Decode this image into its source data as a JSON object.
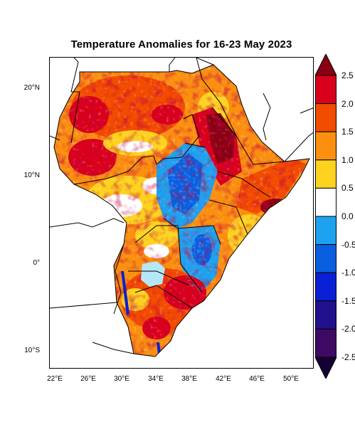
{
  "title": "Temperature Anomalies for 16-23 May 2023",
  "lat_labels": [
    "20°N",
    "10°N",
    "0°",
    "10°S"
  ],
  "lon_labels": [
    "22°E",
    "26°E",
    "30°E",
    "34°E",
    "38°E",
    "42°E",
    "46°E",
    "50°E"
  ],
  "colorbar": {
    "labels": [
      "2.5",
      "2.0",
      "1.5",
      "1.0",
      "0.5",
      "0.0",
      "-0.5",
      "-1.0",
      "-1.5",
      "-2.0",
      "-2.5"
    ],
    "colors": [
      "#8a0012",
      "#d9001b",
      "#f24c00",
      "#fb9010",
      "#fdd320",
      "#ffffff",
      "#1ca2ee",
      "#0a5ee0",
      "#0a20d4",
      "#22118c",
      "#3e0a64",
      "#160033"
    ]
  },
  "palette": {
    "ocean": "#ffffff",
    "lake": "#b4e8f8",
    "border": "#000000"
  }
}
